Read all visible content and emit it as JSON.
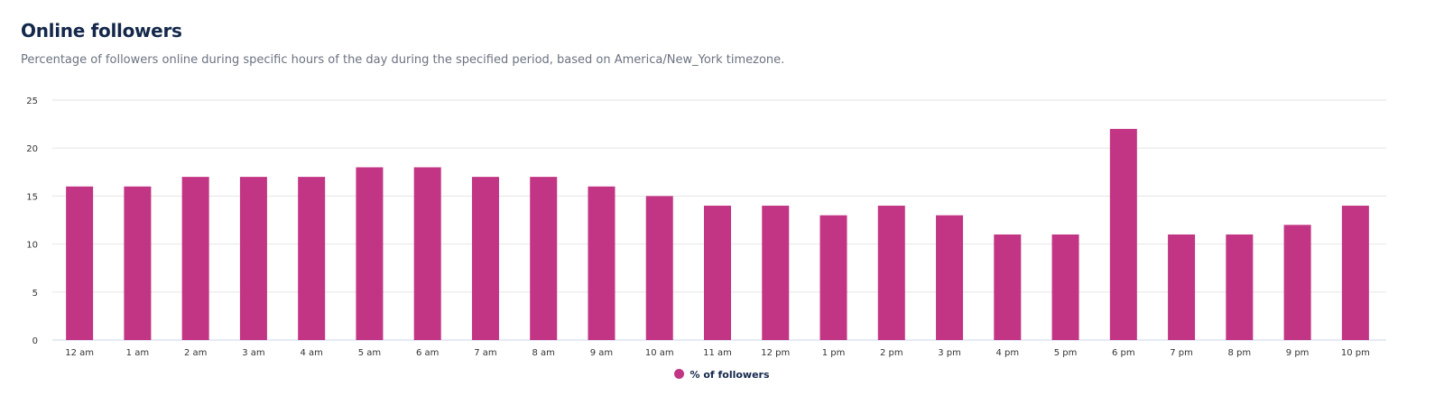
{
  "header": {
    "title": "Online followers",
    "subtitle": "Percentage of followers online during specific hours of the day during the specified period, based on America/New_York timezone."
  },
  "chart_data": {
    "type": "bar",
    "categories": [
      "12 am",
      "1 am",
      "2 am",
      "3 am",
      "4 am",
      "5 am",
      "6 am",
      "7 am",
      "8 am",
      "9 am",
      "10 am",
      "11 am",
      "12 pm",
      "1 pm",
      "2 pm",
      "3 pm",
      "4 pm",
      "5 pm",
      "6 pm",
      "7 pm",
      "8 pm",
      "9 pm",
      "10 pm"
    ],
    "series": [
      {
        "name": "% of followers",
        "values": [
          16,
          16,
          17,
          17,
          17,
          18,
          18,
          17,
          17,
          16,
          15,
          14,
          14,
          13,
          14,
          13,
          11,
          11,
          22,
          11,
          11,
          12,
          14
        ],
        "color": "#c13584"
      }
    ],
    "ylim": [
      0,
      25
    ],
    "yticks": [
      0,
      5,
      10,
      15,
      20,
      25
    ],
    "grid": true,
    "legend": "bottom-center"
  }
}
